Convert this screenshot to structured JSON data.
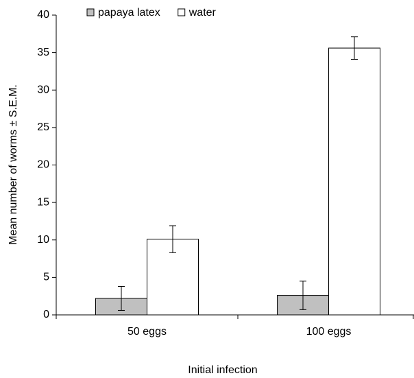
{
  "chart_data": {
    "type": "bar",
    "categories": [
      "50 eggs",
      "100 eggs"
    ],
    "series": [
      {
        "name": "papaya latex",
        "color": "#c0c0c0",
        "values": [
          2.2,
          2.6
        ],
        "errors": [
          1.6,
          1.9
        ]
      },
      {
        "name": "water",
        "color": "#ffffff",
        "values": [
          10.1,
          35.6
        ],
        "errors": [
          1.8,
          1.5
        ]
      }
    ],
    "xlabel": "Initial infection",
    "ylabel": "Mean number of worms ± S.E.M.",
    "ylim": [
      0,
      40
    ],
    "yticks": [
      0,
      5,
      10,
      15,
      20,
      25,
      30,
      35,
      40
    ],
    "grid": false,
    "legend": "top-left"
  }
}
